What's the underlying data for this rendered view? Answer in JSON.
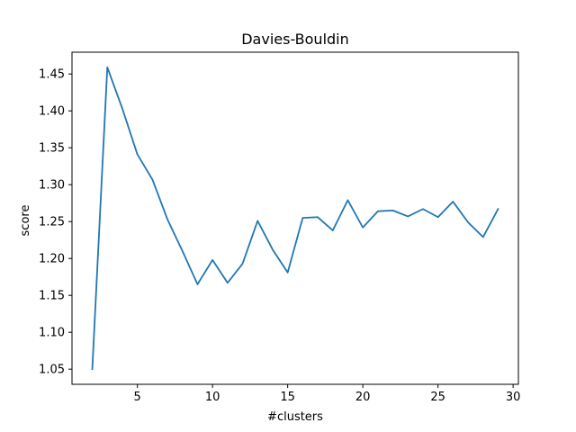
{
  "chart_data": {
    "type": "line",
    "title": "Davies-Bouldin",
    "xlabel": "#clusters",
    "ylabel": "score",
    "xlim": [
      0.65,
      30.35
    ],
    "ylim": [
      1.0295,
      1.4795
    ],
    "xticks": [
      5,
      10,
      15,
      20,
      25,
      30
    ],
    "xtick_labels": [
      "5",
      "10",
      "15",
      "20",
      "25",
      "30"
    ],
    "yticks": [
      1.05,
      1.1,
      1.15,
      1.2,
      1.25,
      1.3,
      1.35,
      1.4,
      1.45
    ],
    "ytick_labels": [
      "1.05",
      "1.10",
      "1.15",
      "1.20",
      "1.25",
      "1.30",
      "1.35",
      "1.40",
      "1.45"
    ],
    "grid": false,
    "series": [
      {
        "color": "#1f77b4",
        "x": [
          2,
          3,
          4,
          5,
          6,
          7,
          8,
          9,
          10,
          11,
          12,
          13,
          14,
          15,
          16,
          17,
          18,
          19,
          20,
          21,
          22,
          23,
          24,
          25,
          26,
          27,
          28,
          29
        ],
        "y": [
          1.05,
          1.459,
          1.403,
          1.341,
          1.307,
          1.253,
          1.21,
          1.165,
          1.198,
          1.167,
          1.193,
          1.251,
          1.212,
          1.181,
          1.255,
          1.256,
          1.238,
          1.279,
          1.242,
          1.264,
          1.265,
          1.257,
          1.267,
          1.256,
          1.277,
          1.249,
          1.229,
          1.267
        ]
      }
    ]
  }
}
